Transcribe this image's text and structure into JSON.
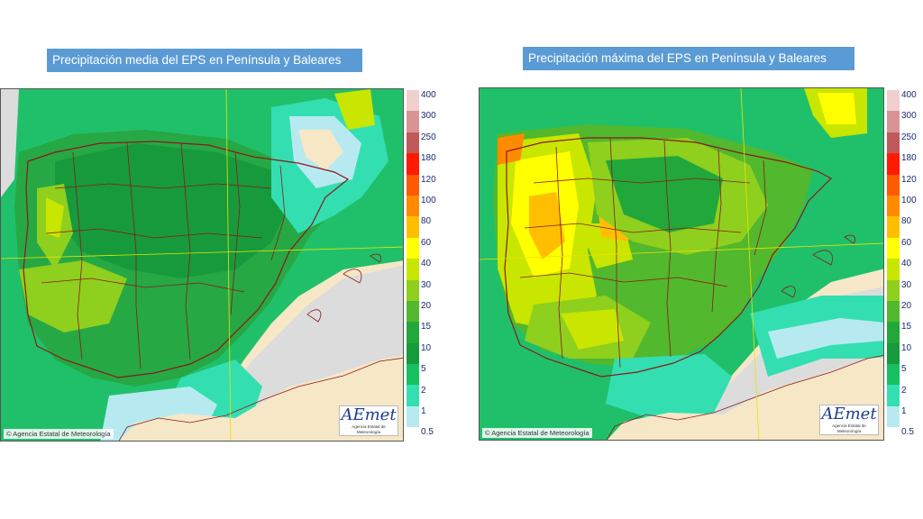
{
  "left": {
    "title": "Precipitación media del EPS en Península y Baleares",
    "credit": "Agencia Estatal de Meteorología",
    "logo": {
      "word": "AEmet",
      "sub": "Agencia Estatal de Meteorología"
    },
    "legend": {
      "labels": [
        "400",
        "300",
        "250",
        "180",
        "120",
        "100",
        "80",
        "60",
        "40",
        "30",
        "20",
        "15",
        "10",
        "5",
        "2",
        "1",
        "0.5"
      ],
      "colors": [
        "#f1cfcf",
        "#d89494",
        "#c05a5a",
        "#ff1a00",
        "#ff5a00",
        "#ff8a00",
        "#ffbf00",
        "#ffff00",
        "#c8e600",
        "#8fcf1e",
        "#52b82d",
        "#22a83a",
        "#169a3c",
        "#17c060",
        "#33dfb0",
        "#b7eaf0",
        "#ffffff"
      ]
    }
  },
  "right": {
    "title": "Precipitación máxima del EPS en Península y Baleares",
    "credit": "Agencia Estatal de Meteorología",
    "logo": {
      "word": "AEmet",
      "sub": "Agencia Estatal de Meteorología"
    },
    "legend": {
      "labels": [
        "400",
        "300",
        "250",
        "180",
        "120",
        "100",
        "80",
        "60",
        "40",
        "30",
        "20",
        "15",
        "10",
        "5",
        "2",
        "1",
        "0.5"
      ],
      "colors": [
        "#f1cfcf",
        "#d89494",
        "#c05a5a",
        "#ff1a00",
        "#ff5a00",
        "#ff8a00",
        "#ffbf00",
        "#ffff00",
        "#c8e600",
        "#8fcf1e",
        "#52b82d",
        "#22a83a",
        "#169a3c",
        "#17c060",
        "#33dfb0",
        "#b7eaf0",
        "#ffffff"
      ]
    }
  }
}
